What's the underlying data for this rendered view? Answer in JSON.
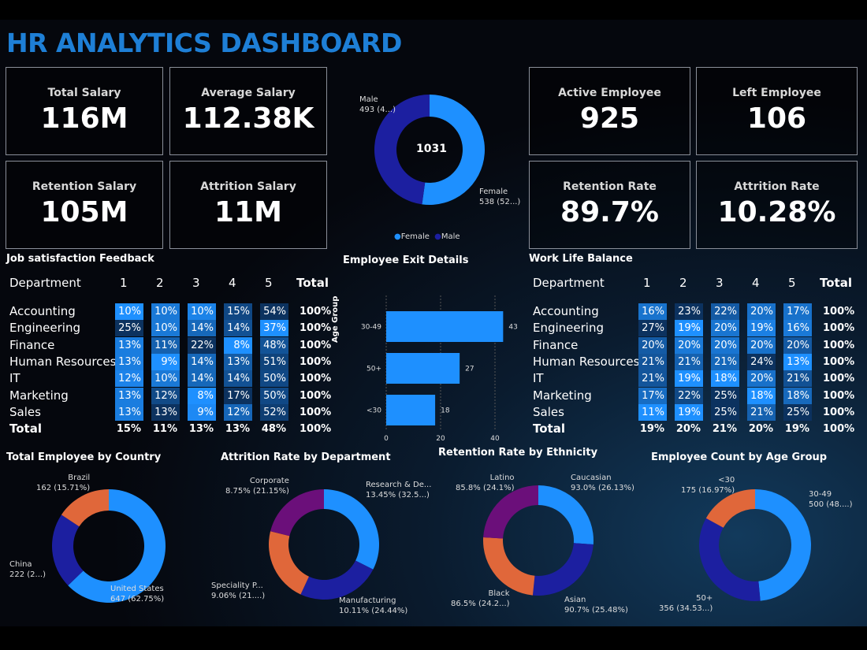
{
  "title": "HR ANALYTICS DASHBOARD",
  "kpis": [
    {
      "label": "Total Salary",
      "value": "116M"
    },
    {
      "label": "Average Salary",
      "value": "112.38K"
    },
    {
      "label": "Retention Salary",
      "value": "105M"
    },
    {
      "label": "Attrition Salary",
      "value": "11M"
    },
    {
      "label": "Active Employee",
      "value": "925"
    },
    {
      "label": "Left Employee",
      "value": "106"
    },
    {
      "label": "Retention Rate",
      "value": "89.7%"
    },
    {
      "label": "Attrition Rate",
      "value": "10.28%"
    }
  ],
  "colors": {
    "light_blue": "#1e90ff",
    "dark_blue": "#1c1fa0",
    "orange": "#e0673a",
    "purple": "#6b0f7a",
    "title": "#1e7fd6"
  },
  "job_satisfaction": {
    "title": "Job satisfaction Feedback",
    "headers": [
      "Department",
      "1",
      "2",
      "3",
      "4",
      "5",
      "Total"
    ],
    "rows": [
      {
        "dept": "Accounting",
        "values": [
          "10%",
          "10%",
          "10%",
          "15%",
          "54%"
        ],
        "total": "100%"
      },
      {
        "dept": "Engineering",
        "values": [
          "25%",
          "10%",
          "14%",
          "14%",
          "37%"
        ],
        "total": "100%"
      },
      {
        "dept": "Finance",
        "values": [
          "13%",
          "11%",
          "22%",
          "8%",
          "48%"
        ],
        "total": "100%"
      },
      {
        "dept": "Human Resources",
        "values": [
          "13%",
          "9%",
          "14%",
          "13%",
          "51%"
        ],
        "total": "100%"
      },
      {
        "dept": "IT",
        "values": [
          "12%",
          "10%",
          "14%",
          "14%",
          "50%"
        ],
        "total": "100%"
      },
      {
        "dept": "Marketing",
        "values": [
          "13%",
          "12%",
          "8%",
          "17%",
          "50%"
        ],
        "total": "100%"
      },
      {
        "dept": "Sales",
        "values": [
          "13%",
          "13%",
          "9%",
          "12%",
          "52%"
        ],
        "total": "100%"
      }
    ],
    "total_row": {
      "label": "Total",
      "values": [
        "15%",
        "11%",
        "13%",
        "13%",
        "48%"
      ],
      "total": "100%"
    }
  },
  "work_life": {
    "title": "Work Life Balance",
    "headers": [
      "Department",
      "1",
      "2",
      "3",
      "4",
      "5",
      "Total"
    ],
    "rows": [
      {
        "dept": "Accounting",
        "values": [
          "16%",
          "23%",
          "22%",
          "20%",
          "17%"
        ],
        "total": "100%"
      },
      {
        "dept": "Engineering",
        "values": [
          "27%",
          "19%",
          "20%",
          "19%",
          "16%"
        ],
        "total": "100%"
      },
      {
        "dept": "Finance",
        "values": [
          "20%",
          "20%",
          "20%",
          "20%",
          "20%"
        ],
        "total": "100%"
      },
      {
        "dept": "Human Resources",
        "values": [
          "21%",
          "21%",
          "21%",
          "24%",
          "13%"
        ],
        "total": "100%"
      },
      {
        "dept": "IT",
        "values": [
          "21%",
          "19%",
          "18%",
          "20%",
          "21%"
        ],
        "total": "100%"
      },
      {
        "dept": "Marketing",
        "values": [
          "17%",
          "22%",
          "25%",
          "18%",
          "18%"
        ],
        "total": "100%"
      },
      {
        "dept": "Sales",
        "values": [
          "11%",
          "19%",
          "25%",
          "21%",
          "25%"
        ],
        "total": "100%"
      }
    ],
    "total_row": {
      "label": "Total",
      "values": [
        "19%",
        "20%",
        "21%",
        "20%",
        "19%"
      ],
      "total": "100%"
    }
  },
  "chart_data": [
    {
      "type": "pie",
      "id": "gender",
      "center_label": "1031",
      "legend": [
        "Female",
        "Male"
      ],
      "legend_placement": "bottom",
      "slices": [
        {
          "name": "Female",
          "value": 538,
          "label": "Female",
          "detail": "538 (52...)",
          "color": "#1e90ff"
        },
        {
          "name": "Male",
          "value": 493,
          "label": "Male",
          "detail": "493 (4...)",
          "color": "#1c1fa0"
        }
      ]
    },
    {
      "type": "bar",
      "id": "exit",
      "title": "Employee Exit Details",
      "ylabel": "Age Group",
      "orientation": "horizontal",
      "categories": [
        "30-49",
        "50+",
        "<30"
      ],
      "values": [
        43,
        27,
        18
      ],
      "xlim": [
        0,
        45
      ],
      "xticks": [
        0,
        20,
        40
      ],
      "grid": true,
      "color": "#1e90ff"
    },
    {
      "type": "pie",
      "id": "country",
      "title": "Total Employee by Country",
      "slices": [
        {
          "name": "United States",
          "value": 62.75,
          "label": "United States",
          "detail": "647 (62.75%)",
          "color": "#1e90ff"
        },
        {
          "name": "China",
          "value": 21.54,
          "label": "China",
          "detail": "222 (2...)",
          "color": "#1c1fa0"
        },
        {
          "name": "Brazil",
          "value": 15.71,
          "label": "Brazil",
          "detail": "162 (15.71%)",
          "color": "#e0673a"
        }
      ]
    },
    {
      "type": "pie",
      "id": "dept",
      "title": "Attrition Rate by Department",
      "slices": [
        {
          "name": "Research & De...",
          "value": 32.5,
          "label": "Research & De...",
          "detail": "13.45% (32.5...)",
          "color": "#1e90ff"
        },
        {
          "name": "Manufacturing",
          "value": 24.44,
          "label": "Manufacturing",
          "detail": "10.11% (24.44%)",
          "color": "#1c1fa0"
        },
        {
          "name": "Speciality P...",
          "value": 21.9,
          "label": "Speciality P...",
          "detail": "9.06% (21....)",
          "color": "#e0673a"
        },
        {
          "name": "Corporate",
          "value": 21.15,
          "label": "Corporate",
          "detail": "8.75% (21.15%)",
          "color": "#6b0f7a"
        }
      ]
    },
    {
      "type": "pie",
      "id": "ethnicity",
      "title": "Retention Rate by Ethnicity",
      "slices": [
        {
          "name": "Caucasian",
          "value": 26.13,
          "label": "Caucasian",
          "detail": "93.0% (26.13%)",
          "color": "#1e90ff"
        },
        {
          "name": "Asian",
          "value": 25.48,
          "label": "Asian",
          "detail": "90.7% (25.48%)",
          "color": "#1c1fa0"
        },
        {
          "name": "Black",
          "value": 24.29,
          "label": "Black",
          "detail": "86.5% (24.2...)",
          "color": "#e0673a"
        },
        {
          "name": "Latino",
          "value": 24.1,
          "label": "Latino",
          "detail": "85.8% (24.1%)",
          "color": "#6b0f7a"
        }
      ]
    },
    {
      "type": "pie",
      "id": "age",
      "title": "Employee Count by Age Group",
      "slices": [
        {
          "name": "30-49",
          "value": 500,
          "label": "30-49",
          "detail": "500 (48....)",
          "color": "#1e90ff"
        },
        {
          "name": "50+",
          "value": 356,
          "label": "50+",
          "detail": "356 (34.53...)",
          "color": "#1c1fa0"
        },
        {
          "name": "<30",
          "value": 175,
          "label": "<30",
          "detail": "175 (16.97%)",
          "color": "#e0673a"
        }
      ]
    }
  ]
}
